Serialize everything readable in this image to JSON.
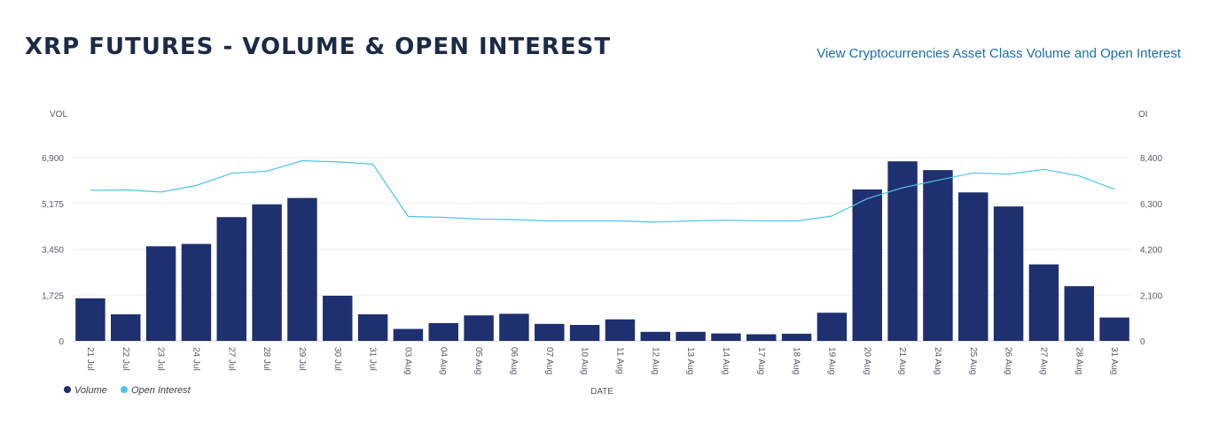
{
  "header": {
    "title": "XRP FUTURES - VOLUME & OPEN INTEREST",
    "link_label": "View Cryptocurrencies Asset Class Volume and Open Interest"
  },
  "colors": {
    "volume": "#1f3070",
    "open_interest": "#4cc3ef",
    "grid": "#eeeeee",
    "axis_text": "#555a66"
  },
  "chart_data": {
    "type": "bar",
    "xlabel": "DATE",
    "left_axis": {
      "label": "VOL",
      "ylim": [
        0,
        6900
      ],
      "ticks": [
        "0",
        "1,725",
        "3,450",
        "5,175",
        "6,900"
      ]
    },
    "right_axis": {
      "label": "OI",
      "ylim": [
        0,
        8400
      ],
      "ticks": [
        "0",
        "2,100",
        "4,200",
        "6,300",
        "8,400"
      ]
    },
    "grid": true,
    "legend_position": "bottom-left",
    "categories": [
      "21 Jul",
      "22 Jul",
      "23 Jul",
      "24 Jul",
      "27 Jul",
      "28 Jul",
      "29 Jul",
      "30 Jul",
      "31 Jul",
      "03 Aug",
      "04 Aug",
      "05 Aug",
      "06 Aug",
      "07 Aug",
      "10 Aug",
      "11 Aug",
      "12 Aug",
      "13 Aug",
      "14 Aug",
      "17 Aug",
      "18 Aug",
      "19 Aug",
      "20 Aug",
      "21 Aug",
      "24 Aug",
      "25 Aug",
      "26 Aug",
      "27 Aug",
      "28 Aug",
      "31 Aug"
    ],
    "series": [
      {
        "name": "Volume",
        "type": "bar",
        "axis": "left",
        "values": [
          1600,
          1000,
          3560,
          3650,
          4660,
          5140,
          5380,
          1700,
          1000,
          450,
          670,
          960,
          1020,
          640,
          600,
          810,
          340,
          340,
          280,
          250,
          270,
          1060,
          5700,
          6760,
          6430,
          5590,
          5060,
          2880,
          2060,
          880
        ]
      },
      {
        "name": "Open Interest",
        "type": "line",
        "axis": "right",
        "values": [
          6900,
          6920,
          6820,
          7120,
          7680,
          7780,
          8260,
          8200,
          8100,
          5700,
          5660,
          5580,
          5560,
          5500,
          5500,
          5500,
          5440,
          5500,
          5530,
          5500,
          5500,
          5720,
          6520,
          7020,
          7360,
          7700,
          7640,
          7860,
          7560,
          6950
        ]
      }
    ]
  }
}
